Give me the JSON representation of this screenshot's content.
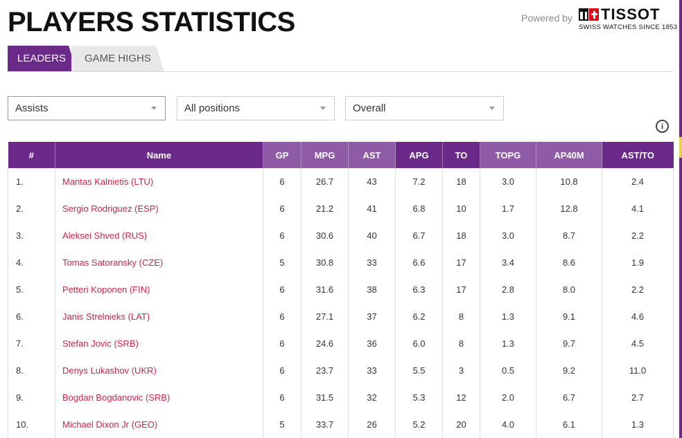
{
  "page": {
    "title": "PLAYERS STATISTICS",
    "powered_by": "Powered by",
    "sponsor": {
      "name": "TISSOT",
      "tagline": "SWISS WATCHES SINCE 1853"
    }
  },
  "tabs": [
    {
      "label": "LEADERS",
      "active": true
    },
    {
      "label": "GAME HIGHS",
      "active": false
    }
  ],
  "filters": {
    "stat": "Assists",
    "position": "All positions",
    "scope": "Overall"
  },
  "info_icon": "info-icon",
  "colors": {
    "header_primary": "#6b2a8a",
    "header_alt": "#8f5aa6",
    "player_link": "#c8264a"
  },
  "table": {
    "columns": [
      "#",
      "Name",
      "GP",
      "MPG",
      "AST",
      "APG",
      "TO",
      "TOPG",
      "AP40M",
      "AST/TO"
    ],
    "rows": [
      [
        "1.",
        "Mantas Kalnietis (LTU)",
        "6",
        "26.7",
        "43",
        "7.2",
        "18",
        "3.0",
        "10.8",
        "2.4"
      ],
      [
        "2.",
        "Sergio Rodriguez (ESP)",
        "6",
        "21.2",
        "41",
        "6.8",
        "10",
        "1.7",
        "12.8",
        "4.1"
      ],
      [
        "3.",
        "Aleksei Shved (RUS)",
        "6",
        "30.6",
        "40",
        "6.7",
        "18",
        "3.0",
        "8.7",
        "2.2"
      ],
      [
        "4.",
        "Tomas Satoransky (CZE)",
        "5",
        "30.8",
        "33",
        "6.6",
        "17",
        "3.4",
        "8.6",
        "1.9"
      ],
      [
        "5.",
        "Petteri Koponen (FIN)",
        "6",
        "31.6",
        "38",
        "6.3",
        "17",
        "2.8",
        "8.0",
        "2.2"
      ],
      [
        "6.",
        "Janis Strelnieks (LAT)",
        "6",
        "27.1",
        "37",
        "6.2",
        "8",
        "1.3",
        "9.1",
        "4.6"
      ],
      [
        "7.",
        "Stefan Jovic (SRB)",
        "6",
        "24.6",
        "36",
        "6.0",
        "8",
        "1.3",
        "9.7",
        "4.5"
      ],
      [
        "8.",
        "Denys Lukashov (UKR)",
        "6",
        "23.7",
        "33",
        "5.5",
        "3",
        "0.5",
        "9.2",
        "11.0"
      ],
      [
        "9.",
        "Bogdan Bogdanovic (SRB)",
        "6",
        "31.5",
        "32",
        "5.3",
        "12",
        "2.0",
        "6.7",
        "2.7"
      ],
      [
        "10.",
        "Michael Dixon Jr (GEO)",
        "5",
        "33.7",
        "26",
        "5.2",
        "20",
        "4.0",
        "6.1",
        "1.3"
      ]
    ]
  }
}
